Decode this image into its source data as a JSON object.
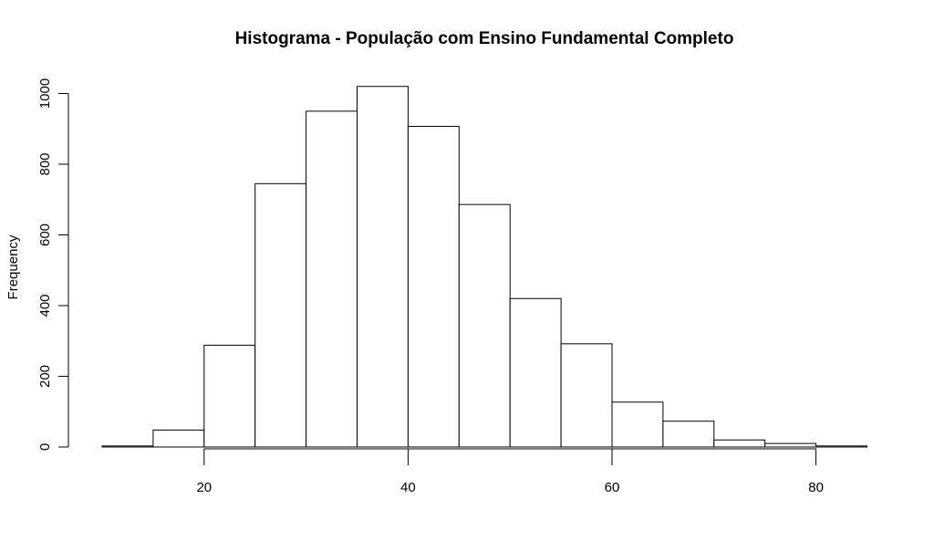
{
  "chart_data": {
    "type": "bar",
    "title": "Histograma - População com Ensino Fundamental Completo",
    "xlabel": "",
    "ylabel": "Frequency",
    "bins": [
      {
        "start": 10,
        "end": 15,
        "count": 3
      },
      {
        "start": 15,
        "end": 20,
        "count": 48
      },
      {
        "start": 20,
        "end": 25,
        "count": 288
      },
      {
        "start": 25,
        "end": 30,
        "count": 745
      },
      {
        "start": 30,
        "end": 35,
        "count": 950
      },
      {
        "start": 35,
        "end": 40,
        "count": 1020
      },
      {
        "start": 40,
        "end": 45,
        "count": 907
      },
      {
        "start": 45,
        "end": 50,
        "count": 686
      },
      {
        "start": 50,
        "end": 55,
        "count": 420
      },
      {
        "start": 55,
        "end": 60,
        "count": 292
      },
      {
        "start": 60,
        "end": 65,
        "count": 127
      },
      {
        "start": 65,
        "end": 70,
        "count": 73
      },
      {
        "start": 70,
        "end": 75,
        "count": 20
      },
      {
        "start": 75,
        "end": 80,
        "count": 10
      },
      {
        "start": 80,
        "end": 85,
        "count": 3
      }
    ],
    "xlim": [
      10,
      85
    ],
    "ylim": [
      0,
      1000
    ],
    "x_ticks": [
      20,
      40,
      60,
      80
    ],
    "y_ticks": [
      0,
      200,
      400,
      600,
      800,
      1000
    ],
    "grid": false,
    "legend": "none",
    "bar_fill": "#ffffff",
    "bar_stroke": "#000000"
  }
}
